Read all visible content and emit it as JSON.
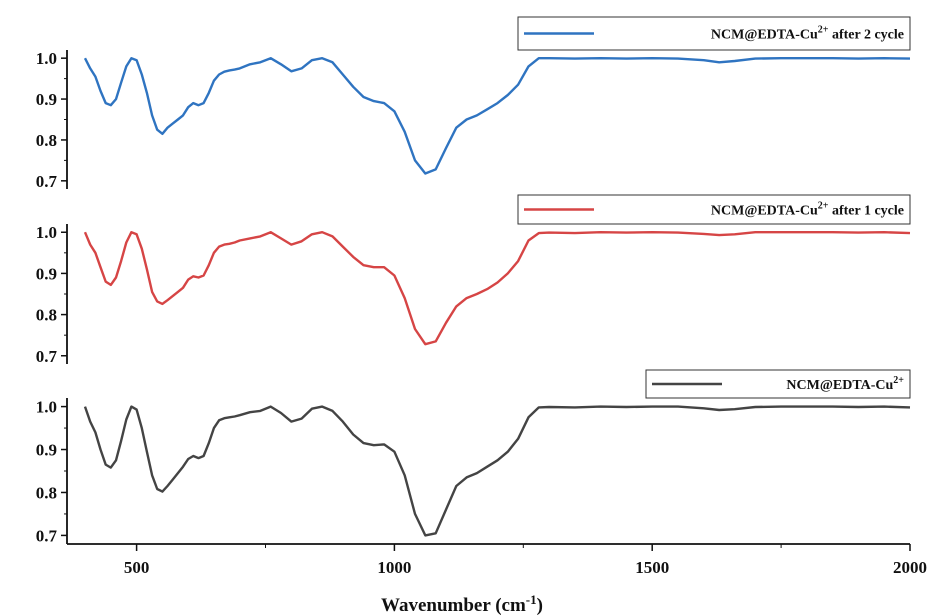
{
  "chart_data": {
    "type": "line",
    "xlabel": "Wavenumber (cm",
    "xlabel_sup": "-1",
    "xlabel_end": ")",
    "xlim": [
      365,
      2000
    ],
    "xticks": [
      500,
      1000,
      1500,
      2000
    ],
    "x_tick_labels": [
      "500",
      "1000",
      "1500",
      "2000"
    ],
    "grid": false,
    "panels": [
      {
        "legend_placement": "top-right",
        "ylim": [
          0.68,
          1.02
        ],
        "yticks": [
          0.7,
          0.8,
          0.9,
          1.0
        ],
        "y_tick_labels": [
          "0.7",
          "0.8",
          "0.9",
          "1.0"
        ],
        "series": {
          "legend_main": "NCM@EDTA-Cu",
          "legend_sup": "2+",
          "legend_rest": " after 2 cycle",
          "color": "#2f74c1",
          "x": [
            400,
            410,
            420,
            430,
            440,
            450,
            460,
            470,
            480,
            490,
            500,
            510,
            520,
            530,
            540,
            550,
            560,
            570,
            580,
            590,
            600,
            610,
            620,
            630,
            640,
            650,
            660,
            670,
            680,
            690,
            700,
            720,
            740,
            760,
            780,
            800,
            820,
            840,
            860,
            880,
            900,
            920,
            940,
            960,
            980,
            1000,
            1020,
            1040,
            1060,
            1080,
            1100,
            1120,
            1140,
            1160,
            1180,
            1200,
            1220,
            1240,
            1260,
            1280,
            1300,
            1350,
            1400,
            1450,
            1500,
            1550,
            1600,
            1630,
            1660,
            1700,
            1750,
            1800,
            1850,
            1900,
            1950,
            2000
          ],
          "y": [
            1.0,
            0.975,
            0.955,
            0.92,
            0.89,
            0.885,
            0.9,
            0.94,
            0.98,
            1.0,
            0.995,
            0.96,
            0.915,
            0.86,
            0.825,
            0.815,
            0.83,
            0.84,
            0.85,
            0.86,
            0.88,
            0.89,
            0.885,
            0.89,
            0.915,
            0.945,
            0.96,
            0.967,
            0.97,
            0.972,
            0.975,
            0.985,
            0.99,
            1.0,
            0.985,
            0.968,
            0.975,
            0.995,
            1.0,
            0.99,
            0.96,
            0.93,
            0.905,
            0.895,
            0.89,
            0.87,
            0.82,
            0.75,
            0.718,
            0.728,
            0.78,
            0.83,
            0.85,
            0.86,
            0.875,
            0.89,
            0.91,
            0.935,
            0.98,
            1.0,
            1.0,
            0.999,
            1.0,
            0.999,
            1.0,
            0.999,
            0.995,
            0.99,
            0.993,
            0.999,
            1.0,
            1.0,
            1.0,
            0.999,
            1.0,
            0.999
          ]
        }
      },
      {
        "legend_placement": "top-right",
        "ylim": [
          0.68,
          1.02
        ],
        "yticks": [
          0.7,
          0.8,
          0.9,
          1.0
        ],
        "y_tick_labels": [
          "0.7",
          "0.8",
          "0.9",
          "1.0"
        ],
        "series": {
          "legend_main": "NCM@EDTA-Cu",
          "legend_sup": "2+",
          "legend_rest": " after 1 cycle",
          "color": "#d64545",
          "x": [
            400,
            410,
            420,
            430,
            440,
            450,
            460,
            470,
            480,
            490,
            500,
            510,
            520,
            530,
            540,
            550,
            560,
            570,
            580,
            590,
            600,
            610,
            620,
            630,
            640,
            650,
            660,
            670,
            680,
            690,
            700,
            720,
            740,
            760,
            780,
            800,
            820,
            840,
            860,
            880,
            900,
            920,
            940,
            960,
            980,
            1000,
            1020,
            1040,
            1060,
            1080,
            1100,
            1120,
            1140,
            1160,
            1180,
            1200,
            1220,
            1240,
            1260,
            1280,
            1300,
            1350,
            1400,
            1450,
            1500,
            1550,
            1600,
            1630,
            1660,
            1700,
            1750,
            1800,
            1850,
            1900,
            1950,
            2000
          ],
          "y": [
            1.0,
            0.97,
            0.95,
            0.915,
            0.88,
            0.872,
            0.89,
            0.93,
            0.975,
            1.0,
            0.995,
            0.96,
            0.91,
            0.855,
            0.832,
            0.826,
            0.835,
            0.845,
            0.855,
            0.865,
            0.885,
            0.893,
            0.89,
            0.895,
            0.92,
            0.95,
            0.965,
            0.97,
            0.972,
            0.975,
            0.98,
            0.985,
            0.99,
            1.0,
            0.985,
            0.97,
            0.978,
            0.995,
            1.0,
            0.99,
            0.965,
            0.94,
            0.92,
            0.915,
            0.915,
            0.895,
            0.84,
            0.765,
            0.728,
            0.735,
            0.78,
            0.82,
            0.84,
            0.85,
            0.862,
            0.878,
            0.9,
            0.93,
            0.98,
            0.998,
            0.999,
            0.998,
            1.0,
            0.999,
            1.0,
            0.999,
            0.996,
            0.993,
            0.995,
            1.0,
            1.0,
            1.0,
            1.0,
            0.999,
            1.0,
            0.998
          ]
        }
      },
      {
        "legend_placement": "top-right",
        "ylim": [
          0.68,
          1.02
        ],
        "yticks": [
          0.7,
          0.8,
          0.9,
          1.0
        ],
        "y_tick_labels": [
          "0.7",
          "0.8",
          "0.9",
          "1.0"
        ],
        "series": {
          "legend_main": "NCM@EDTA-Cu",
          "legend_sup": "2+",
          "legend_rest": "",
          "color": "#444444",
          "x": [
            400,
            410,
            420,
            430,
            440,
            450,
            460,
            470,
            480,
            490,
            500,
            510,
            520,
            530,
            540,
            550,
            560,
            570,
            580,
            590,
            600,
            610,
            620,
            630,
            640,
            650,
            660,
            670,
            680,
            690,
            700,
            720,
            740,
            760,
            780,
            800,
            820,
            840,
            860,
            880,
            900,
            920,
            940,
            960,
            980,
            1000,
            1020,
            1040,
            1060,
            1080,
            1100,
            1120,
            1140,
            1160,
            1180,
            1200,
            1220,
            1240,
            1260,
            1280,
            1300,
            1350,
            1400,
            1450,
            1500,
            1550,
            1600,
            1630,
            1660,
            1700,
            1750,
            1800,
            1850,
            1900,
            1950,
            2000
          ],
          "y": [
            1.0,
            0.965,
            0.94,
            0.9,
            0.865,
            0.858,
            0.875,
            0.92,
            0.97,
            1.0,
            0.993,
            0.95,
            0.895,
            0.84,
            0.808,
            0.802,
            0.815,
            0.83,
            0.845,
            0.86,
            0.878,
            0.885,
            0.88,
            0.885,
            0.915,
            0.95,
            0.968,
            0.973,
            0.975,
            0.977,
            0.98,
            0.987,
            0.99,
            1.0,
            0.985,
            0.965,
            0.972,
            0.995,
            1.0,
            0.99,
            0.965,
            0.935,
            0.915,
            0.91,
            0.912,
            0.895,
            0.84,
            0.75,
            0.7,
            0.705,
            0.76,
            0.815,
            0.835,
            0.845,
            0.86,
            0.875,
            0.895,
            0.925,
            0.975,
            0.998,
            0.999,
            0.998,
            1.0,
            0.999,
            1.0,
            1.0,
            0.996,
            0.992,
            0.994,
            0.999,
            1.0,
            1.0,
            1.0,
            0.999,
            1.0,
            0.998
          ]
        }
      }
    ]
  }
}
